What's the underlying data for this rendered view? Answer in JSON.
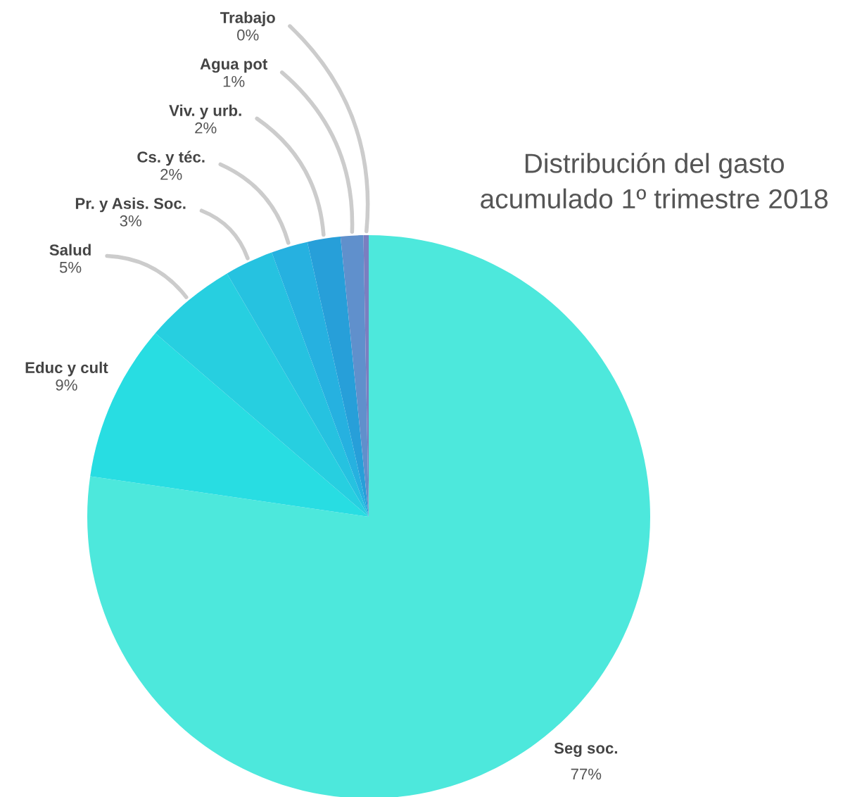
{
  "chart_data": {
    "type": "pie",
    "title": "Distribución del gasto\nacumulado 1º trimestre 2018",
    "categories": [
      "Seg soc.",
      "Educ y cult",
      "Salud",
      "Pr. y Asis. Soc.",
      "Cs. y téc.",
      "Viv. y urb.",
      "Agua pot",
      "Trabajo"
    ],
    "values": [
      77.3,
      9.0,
      5.3,
      2.8,
      2.1,
      1.9,
      1.3,
      0.3
    ],
    "value_labels": [
      "77%",
      "9%",
      "5%",
      "3%",
      "2%",
      "2%",
      "1%",
      "0%"
    ],
    "colors": [
      "#4de8dc",
      "#28dde2",
      "#27cfe0",
      "#26c2e0",
      "#26b1e0",
      "#279fd9",
      "#6090cc",
      "#7a7fc0"
    ],
    "legend": false
  }
}
